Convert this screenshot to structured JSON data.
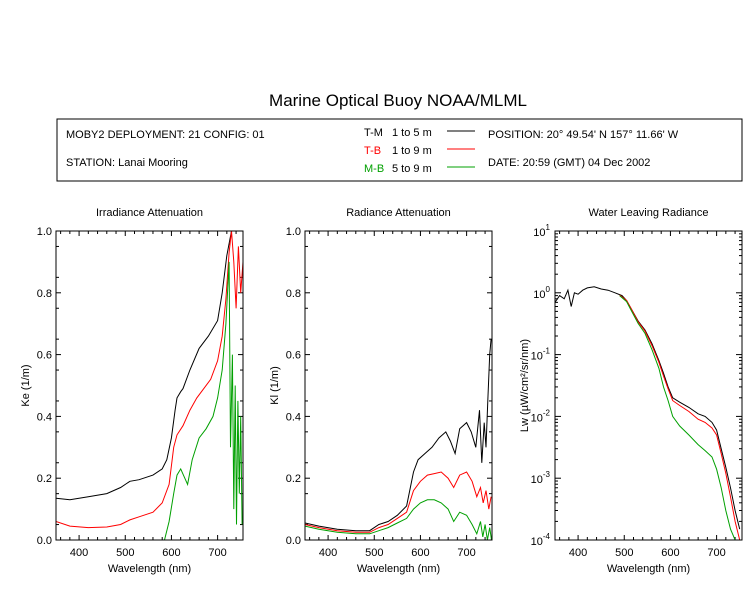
{
  "header": {
    "title": "Marine Optical Buoy NOAA/MLML",
    "deployment": "MOBY2 DEPLOYMENT: 21 CONFIG: 01",
    "station": "STATION: Lanai Mooring",
    "position": "POSITION: 20° 49.54' N   157° 11.66' W",
    "date": "DATE: 20:59 (GMT) 04 Dec 2002"
  },
  "legend": [
    {
      "code": "T-M",
      "range": "1 to 5  m",
      "color": "#000000"
    },
    {
      "code": "T-B",
      "range": "1 to 9  m",
      "color": "#ff0000"
    },
    {
      "code": "M-B",
      "range": "5 to 9  m",
      "color": "#00a000"
    }
  ],
  "chart_data": [
    {
      "type": "line",
      "title": "Irradiance Attenuation",
      "xlabel": "Wavelength (nm)",
      "ylabel": "Ke  (1/m)",
      "xlim": [
        350,
        755
      ],
      "ylim": [
        0,
        1.0
      ],
      "xticks": [
        400,
        500,
        600,
        700
      ],
      "yticks": [
        "0.0",
        "0.2",
        "0.4",
        "0.6",
        "0.8",
        "1.0"
      ],
      "series": [
        {
          "name": "T-M",
          "color": "#000000",
          "points": [
            [
              350,
              0.135
            ],
            [
              380,
              0.13
            ],
            [
              420,
              0.14
            ],
            [
              460,
              0.15
            ],
            [
              490,
              0.17
            ],
            [
              510,
              0.19
            ],
            [
              530,
              0.195
            ],
            [
              560,
              0.21
            ],
            [
              580,
              0.23
            ],
            [
              590,
              0.26
            ],
            [
              600,
              0.33
            ],
            [
              608,
              0.42
            ],
            [
              612,
              0.46
            ],
            [
              620,
              0.48
            ],
            [
              625,
              0.49
            ],
            [
              640,
              0.55
            ],
            [
              660,
              0.62
            ],
            [
              680,
              0.66
            ],
            [
              700,
              0.71
            ],
            [
              710,
              0.8
            ],
            [
              720,
              0.92
            ],
            [
              730,
              1.0
            ]
          ]
        },
        {
          "name": "T-B",
          "color": "#ff0000",
          "points": [
            [
              350,
              0.06
            ],
            [
              380,
              0.045
            ],
            [
              420,
              0.04
            ],
            [
              460,
              0.042
            ],
            [
              490,
              0.05
            ],
            [
              510,
              0.065
            ],
            [
              530,
              0.075
            ],
            [
              560,
              0.09
            ],
            [
              580,
              0.12
            ],
            [
              595,
              0.18
            ],
            [
              605,
              0.3
            ],
            [
              612,
              0.34
            ],
            [
              625,
              0.37
            ],
            [
              640,
              0.42
            ],
            [
              655,
              0.46
            ],
            [
              670,
              0.49
            ],
            [
              685,
              0.52
            ],
            [
              700,
              0.58
            ],
            [
              710,
              0.66
            ],
            [
              718,
              0.78
            ],
            [
              725,
              0.93
            ],
            [
              730,
              1.0
            ],
            [
              735,
              0.9
            ],
            [
              740,
              0.75
            ],
            [
              745,
              0.95
            ],
            [
              750,
              0.8
            ],
            [
              755,
              0.9
            ]
          ]
        },
        {
          "name": "M-B",
          "color": "#00a000",
          "points": [
            [
              585,
              0.0
            ],
            [
              595,
              0.06
            ],
            [
              605,
              0.15
            ],
            [
              612,
              0.21
            ],
            [
              620,
              0.23
            ],
            [
              635,
              0.18
            ],
            [
              645,
              0.26
            ],
            [
              660,
              0.33
            ],
            [
              675,
              0.36
            ],
            [
              690,
              0.4
            ],
            [
              700,
              0.46
            ],
            [
              710,
              0.55
            ],
            [
              718,
              0.7
            ],
            [
              725,
              0.9
            ],
            [
              728,
              0.3
            ],
            [
              732,
              0.6
            ],
            [
              735,
              0.1
            ],
            [
              738,
              0.5
            ],
            [
              741,
              0.05
            ],
            [
              744,
              0.45
            ],
            [
              747,
              0.15
            ],
            [
              750,
              0.4
            ],
            [
              753,
              0.05
            ]
          ]
        }
      ]
    },
    {
      "type": "line",
      "title": "Radiance Attenuation",
      "xlabel": "Wavelength (nm)",
      "ylabel": "Kl  (1/m)",
      "xlim": [
        350,
        755
      ],
      "ylim": [
        0,
        1.0
      ],
      "xticks": [
        400,
        500,
        600,
        700
      ],
      "yticks": [
        "0.0",
        "0.2",
        "0.4",
        "0.6",
        "0.8",
        "1.0"
      ],
      "series": [
        {
          "name": "T-M",
          "color": "#000000",
          "points": [
            [
              350,
              0.055
            ],
            [
              380,
              0.045
            ],
            [
              420,
              0.035
            ],
            [
              460,
              0.03
            ],
            [
              490,
              0.03
            ],
            [
              510,
              0.05
            ],
            [
              530,
              0.06
            ],
            [
              550,
              0.08
            ],
            [
              570,
              0.11
            ],
            [
              585,
              0.22
            ],
            [
              595,
              0.26
            ],
            [
              610,
              0.28
            ],
            [
              625,
              0.3
            ],
            [
              640,
              0.33
            ],
            [
              655,
              0.35
            ],
            [
              665,
              0.32
            ],
            [
              675,
              0.28
            ],
            [
              685,
              0.36
            ],
            [
              700,
              0.38
            ],
            [
              710,
              0.35
            ],
            [
              720,
              0.3
            ],
            [
              728,
              0.42
            ],
            [
              733,
              0.25
            ],
            [
              738,
              0.38
            ],
            [
              742,
              0.3
            ],
            [
              746,
              0.45
            ],
            [
              750,
              0.6
            ],
            [
              753,
              0.65
            ]
          ]
        },
        {
          "name": "T-B",
          "color": "#ff0000",
          "points": [
            [
              350,
              0.05
            ],
            [
              380,
              0.04
            ],
            [
              420,
              0.03
            ],
            [
              460,
              0.025
            ],
            [
              490,
              0.025
            ],
            [
              510,
              0.04
            ],
            [
              530,
              0.05
            ],
            [
              550,
              0.07
            ],
            [
              570,
              0.09
            ],
            [
              585,
              0.16
            ],
            [
              600,
              0.19
            ],
            [
              615,
              0.21
            ],
            [
              630,
              0.215
            ],
            [
              645,
              0.22
            ],
            [
              660,
              0.2
            ],
            [
              672,
              0.17
            ],
            [
              685,
              0.21
            ],
            [
              700,
              0.22
            ],
            [
              712,
              0.19
            ],
            [
              722,
              0.14
            ],
            [
              730,
              0.17
            ],
            [
              736,
              0.12
            ],
            [
              742,
              0.16
            ],
            [
              748,
              0.1
            ],
            [
              753,
              0.14
            ]
          ]
        },
        {
          "name": "M-B",
          "color": "#00a000",
          "points": [
            [
              350,
              0.045
            ],
            [
              380,
              0.035
            ],
            [
              420,
              0.025
            ],
            [
              460,
              0.02
            ],
            [
              490,
              0.02
            ],
            [
              510,
              0.03
            ],
            [
              530,
              0.04
            ],
            [
              550,
              0.055
            ],
            [
              570,
              0.07
            ],
            [
              585,
              0.1
            ],
            [
              600,
              0.12
            ],
            [
              615,
              0.13
            ],
            [
              630,
              0.13
            ],
            [
              645,
              0.12
            ],
            [
              660,
              0.1
            ],
            [
              672,
              0.06
            ],
            [
              685,
              0.09
            ],
            [
              700,
              0.08
            ],
            [
              712,
              0.05
            ],
            [
              722,
              0.02
            ],
            [
              730,
              0.06
            ],
            [
              735,
              0.01
            ],
            [
              740,
              0.05
            ],
            [
              745,
              0.0
            ],
            [
              750,
              0.04
            ],
            [
              754,
              0.0
            ]
          ]
        }
      ]
    },
    {
      "type": "line",
      "title": "Water Leaving Radiance",
      "xlabel": "Wavelength (nm)",
      "ylabel": "Lw  (µW/cm²/sr/nm)",
      "yscale": "log",
      "xlim": [
        350,
        755
      ],
      "ylim": [
        0.0001,
        10
      ],
      "xticks": [
        400,
        500,
        600,
        700
      ],
      "yticks": [
        {
          "base": "10",
          "exp": "1"
        },
        {
          "base": "10",
          "exp": "0"
        },
        {
          "base": "10",
          "exp": "-1"
        },
        {
          "base": "10",
          "exp": "-2"
        },
        {
          "base": "10",
          "exp": "-3"
        },
        {
          "base": "10",
          "exp": "-4"
        }
      ],
      "series": [
        {
          "name": "T-M",
          "color": "#000000",
          "points": [
            [
              350,
              0.7
            ],
            [
              360,
              0.9
            ],
            [
              370,
              0.8
            ],
            [
              378,
              1.1
            ],
            [
              385,
              0.6
            ],
            [
              392,
              1.0
            ],
            [
              400,
              0.95
            ],
            [
              410,
              1.1
            ],
            [
              420,
              1.2
            ],
            [
              435,
              1.25
            ],
            [
              450,
              1.15
            ],
            [
              465,
              1.1
            ],
            [
              480,
              1.0
            ],
            [
              495,
              0.9
            ],
            [
              505,
              0.75
            ],
            [
              515,
              0.55
            ],
            [
              530,
              0.35
            ],
            [
              545,
              0.25
            ],
            [
              560,
              0.15
            ],
            [
              575,
              0.08
            ],
            [
              585,
              0.05
            ],
            [
              595,
              0.03
            ],
            [
              605,
              0.02
            ],
            [
              620,
              0.017
            ],
            [
              640,
              0.014
            ],
            [
              660,
              0.011
            ],
            [
              675,
              0.01
            ],
            [
              690,
              0.008
            ],
            [
              700,
              0.006
            ],
            [
              710,
              0.003
            ],
            [
              720,
              0.0015
            ],
            [
              730,
              0.0007
            ],
            [
              740,
              0.0003
            ],
            [
              750,
              0.00015
            ]
          ]
        },
        {
          "name": "T-B",
          "color": "#ff0000",
          "points": [
            [
              490,
              0.92
            ],
            [
              505,
              0.75
            ],
            [
              515,
              0.55
            ],
            [
              530,
              0.34
            ],
            [
              545,
              0.24
            ],
            [
              560,
              0.14
            ],
            [
              575,
              0.075
            ],
            [
              585,
              0.045
            ],
            [
              595,
              0.028
            ],
            [
              605,
              0.018
            ],
            [
              620,
              0.015
            ],
            [
              640,
              0.012
            ],
            [
              660,
              0.009
            ],
            [
              675,
              0.008
            ],
            [
              690,
              0.0065
            ],
            [
              700,
              0.005
            ],
            [
              710,
              0.0025
            ],
            [
              720,
              0.0012
            ],
            [
              730,
              0.0005
            ],
            [
              740,
              0.0002
            ],
            [
              750,
              0.0001
            ]
          ]
        },
        {
          "name": "M-B",
          "color": "#00a000",
          "points": [
            [
              490,
              0.9
            ],
            [
              505,
              0.72
            ],
            [
              515,
              0.52
            ],
            [
              530,
              0.32
            ],
            [
              545,
              0.22
            ],
            [
              560,
              0.12
            ],
            [
              575,
              0.06
            ],
            [
              585,
              0.03
            ],
            [
              595,
              0.018
            ],
            [
              605,
              0.01
            ],
            [
              620,
              0.007
            ],
            [
              640,
              0.005
            ],
            [
              660,
              0.0035
            ],
            [
              675,
              0.0028
            ],
            [
              690,
              0.0022
            ],
            [
              700,
              0.0014
            ],
            [
              710,
              0.0007
            ],
            [
              720,
              0.0003
            ],
            [
              730,
              0.00015
            ],
            [
              740,
              0.0001
            ]
          ]
        }
      ]
    }
  ]
}
